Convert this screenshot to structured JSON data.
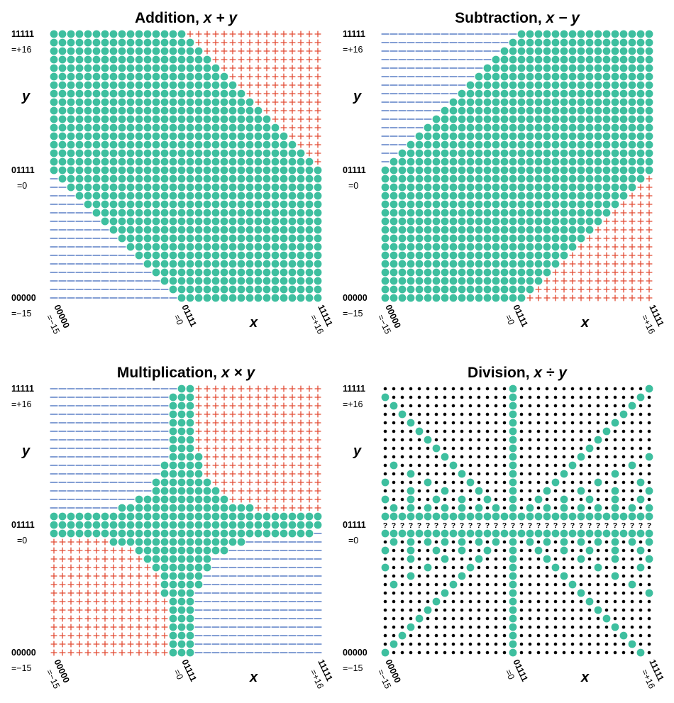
{
  "colors": {
    "zero": "#3ebf9f",
    "positive": "#e24a33",
    "negative": "#5b7fc6",
    "undefined": "#000000",
    "dot": "#000000"
  },
  "axis_labels": {
    "y_name": "y",
    "x_name": "x",
    "y_top_bits": "11111",
    "y_top_value": "=+16",
    "y_mid_bits": "01111",
    "y_mid_value": "=0",
    "y_bottom_bits": "00000",
    "y_bottom_value": "=−15",
    "x_left_bits": "00000",
    "x_left_value": "=−15",
    "x_mid_bits": "01111",
    "x_mid_value": "=0",
    "x_right_bits": "11111",
    "x_right_value": "=+16"
  },
  "undefined_symbol": "?",
  "panels": [
    {
      "id": "add",
      "title_prefix": "Addition, ",
      "title_op": "x + y"
    },
    {
      "id": "sub",
      "title_prefix": "Subtraction, ",
      "title_op": "x − y"
    },
    {
      "id": "mul",
      "title_prefix": "Multiplication, ",
      "title_op": "x × y"
    },
    {
      "id": "div",
      "title_prefix": "Division, ",
      "title_op": "x ÷ y"
    }
  ],
  "chart_data": {
    "type": "heatmap",
    "encoding": "32×32 grid of 5-bit posit values; x and y run from 00000 (=−15) through 01111 (=0) to 11111 (=+16)",
    "symbols": {
      "green dot": "exact result",
      "red +": "overflow to positive",
      "blue −": "overflow to negative",
      "?": "undefined",
      "black dot": "inexact"
    },
    "ranges": {
      "x": [
        -15,
        16
      ],
      "y": [
        -15,
        16
      ]
    }
  }
}
